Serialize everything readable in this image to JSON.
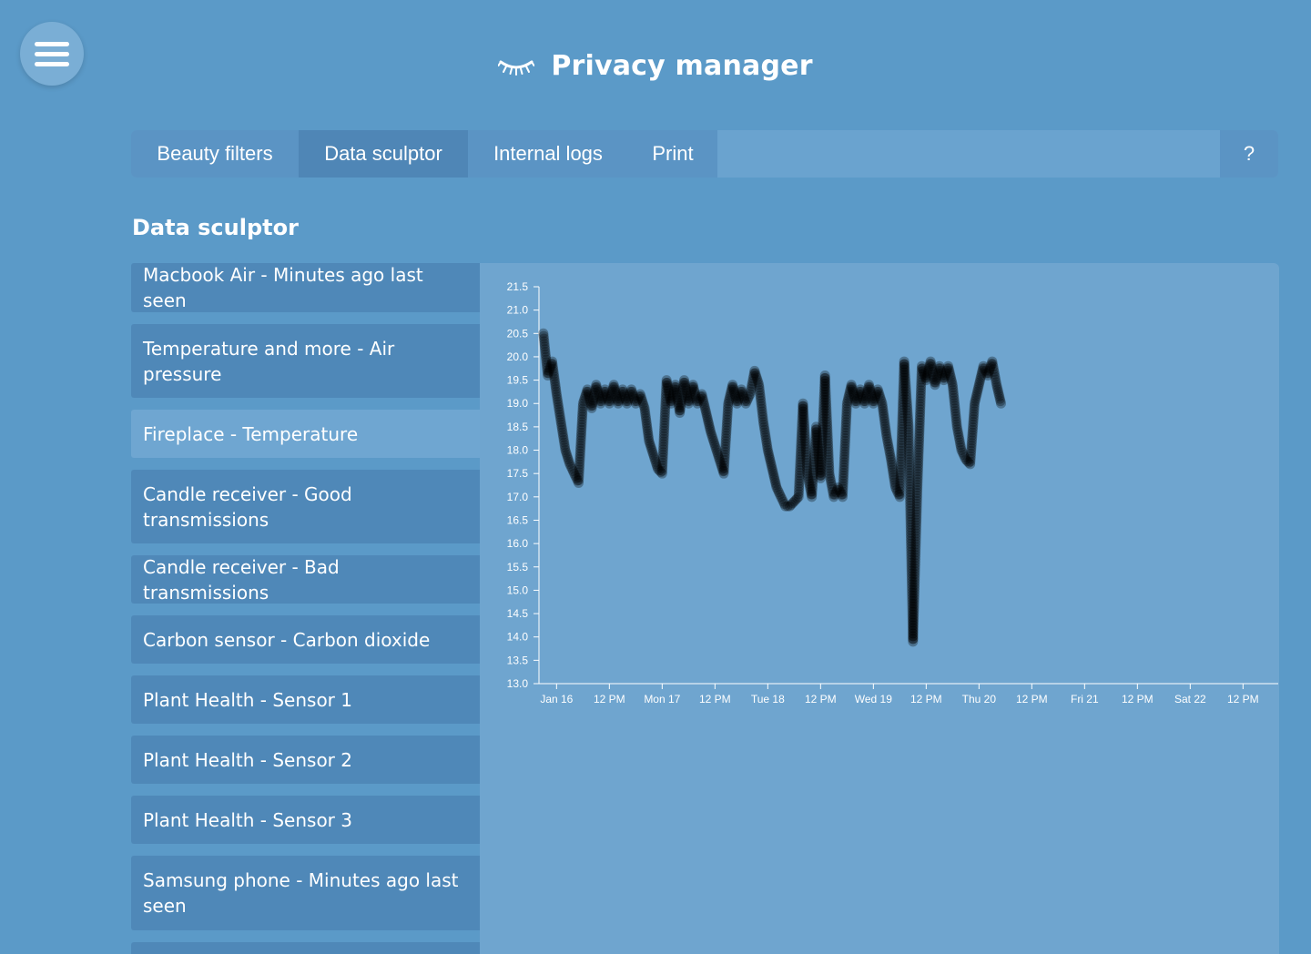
{
  "header": {
    "title": "Privacy manager",
    "icon": "closed-eye-icon"
  },
  "menu": {
    "icon": "hamburger-icon"
  },
  "tabs": [
    {
      "label": "Beauty filters"
    },
    {
      "label": "Data sculptor",
      "active": true
    },
    {
      "label": "Internal logs"
    },
    {
      "label": "Print"
    }
  ],
  "help_label": "?",
  "section_title": "Data sculptor",
  "list": [
    {
      "label": "Macbook Air - Minutes ago last seen"
    },
    {
      "label": "Temperature and more - Air pressure"
    },
    {
      "label": "Fireplace - Temperature",
      "selected": true
    },
    {
      "label": "Candle receiver - Good transmissions"
    },
    {
      "label": "Candle receiver - Bad transmissions"
    },
    {
      "label": "Carbon sensor - Carbon dioxide"
    },
    {
      "label": "Plant Health - Sensor 1"
    },
    {
      "label": "Plant Health - Sensor 2"
    },
    {
      "label": "Plant Health - Sensor 3"
    },
    {
      "label": "Samsung phone - Minutes ago last seen"
    }
  ],
  "chart_data": {
    "type": "scatter",
    "title": "",
    "xlabel": "",
    "ylabel": "",
    "grid": false,
    "point_color": "#000000",
    "ylim": [
      13.0,
      21.5
    ],
    "y_ticks": [
      "21.5",
      "21.0",
      "20.5",
      "20.0",
      "19.5",
      "19.0",
      "18.5",
      "18.0",
      "17.5",
      "17.0",
      "16.5",
      "16.0",
      "15.5",
      "15.0",
      "14.5",
      "14.0",
      "13.5",
      "13.0"
    ],
    "x_ticks": [
      "Jan 16",
      "12 PM",
      "Mon 17",
      "12 PM",
      "Tue 18",
      "12 PM",
      "Wed 19",
      "12 PM",
      "Thu 20",
      "12 PM",
      "Fri 21",
      "12 PM",
      "Sat 22",
      "12 PM"
    ],
    "series": [
      {
        "points": [
          [
            "Jan 15 21:00",
            20.5
          ],
          [
            "Jan 15 22:00",
            19.6
          ],
          [
            "Jan 15 23:00",
            19.9
          ],
          [
            "Jan 16 00:00",
            19.2
          ],
          [
            "Jan 16 01:00",
            18.6
          ],
          [
            "Jan 16 02:00",
            18.0
          ],
          [
            "Jan 16 03:00",
            17.7
          ],
          [
            "Jan 16 04:00",
            17.5
          ],
          [
            "Jan 16 05:00",
            17.3
          ],
          [
            "Jan 16 06:00",
            19.0
          ],
          [
            "Jan 16 07:00",
            19.3
          ],
          [
            "Jan 16 08:00",
            18.9
          ],
          [
            "Jan 16 09:00",
            19.4
          ],
          [
            "Jan 16 10:00",
            19.0
          ],
          [
            "Jan 16 11:00",
            19.3
          ],
          [
            "Jan 16 12:00",
            19.0
          ],
          [
            "Jan 16 13:00",
            19.4
          ],
          [
            "Jan 16 14:00",
            19.0
          ],
          [
            "Jan 16 15:00",
            19.3
          ],
          [
            "Jan 16 16:00",
            19.0
          ],
          [
            "Jan 16 17:00",
            19.3
          ],
          [
            "Jan 16 18:00",
            19.0
          ],
          [
            "Jan 16 19:00",
            19.2
          ],
          [
            "Jan 16 20:00",
            18.9
          ],
          [
            "Jan 16 21:00",
            18.2
          ],
          [
            "Jan 16 22:00",
            17.9
          ],
          [
            "Jan 16 23:00",
            17.6
          ],
          [
            "Jan 17 00:00",
            17.5
          ],
          [
            "Jan 17 01:00",
            19.5
          ],
          [
            "Jan 17 02:00",
            19.0
          ],
          [
            "Jan 17 03:00",
            19.4
          ],
          [
            "Jan 17 04:00",
            18.8
          ],
          [
            "Jan 17 05:00",
            19.5
          ],
          [
            "Jan 17 06:00",
            19.0
          ],
          [
            "Jan 17 07:00",
            19.4
          ],
          [
            "Jan 17 08:00",
            19.0
          ],
          [
            "Jan 17 09:00",
            19.2
          ],
          [
            "Jan 17 10:00",
            18.8
          ],
          [
            "Jan 17 11:00",
            18.4
          ],
          [
            "Jan 17 12:00",
            18.1
          ],
          [
            "Jan 17 13:00",
            17.8
          ],
          [
            "Jan 17 14:00",
            17.5
          ],
          [
            "Jan 17 15:00",
            19.0
          ],
          [
            "Jan 17 16:00",
            19.4
          ],
          [
            "Jan 17 17:00",
            19.0
          ],
          [
            "Jan 17 18:00",
            19.3
          ],
          [
            "Jan 17 19:00",
            19.0
          ],
          [
            "Jan 17 20:00",
            19.2
          ],
          [
            "Jan 17 21:00",
            19.7
          ],
          [
            "Jan 17 22:00",
            19.4
          ],
          [
            "Jan 17 23:00",
            18.6
          ],
          [
            "Jan 18 00:00",
            18.0
          ],
          [
            "Jan 18 01:00",
            17.6
          ],
          [
            "Jan 18 02:00",
            17.2
          ],
          [
            "Jan 18 03:00",
            17.0
          ],
          [
            "Jan 18 04:00",
            16.8
          ],
          [
            "Jan 18 05:00",
            16.8
          ],
          [
            "Jan 18 06:00",
            16.9
          ],
          [
            "Jan 18 07:00",
            17.0
          ],
          [
            "Jan 18 08:00",
            19.0
          ],
          [
            "Jan 18 09:00",
            17.5
          ],
          [
            "Jan 18 10:00",
            17.0
          ],
          [
            "Jan 18 11:00",
            18.5
          ],
          [
            "Jan 18 12:00",
            17.4
          ],
          [
            "Jan 18 13:00",
            19.6
          ],
          [
            "Jan 18 14:00",
            17.5
          ],
          [
            "Jan 18 15:00",
            17.0
          ],
          [
            "Jan 18 16:00",
            17.2
          ],
          [
            "Jan 18 17:00",
            17.0
          ],
          [
            "Jan 18 18:00",
            19.0
          ],
          [
            "Jan 18 19:00",
            19.4
          ],
          [
            "Jan 18 20:00",
            19.0
          ],
          [
            "Jan 18 21:00",
            19.3
          ],
          [
            "Jan 18 22:00",
            19.0
          ],
          [
            "Jan 18 23:00",
            19.4
          ],
          [
            "Jan 19 00:00",
            19.0
          ],
          [
            "Jan 19 01:00",
            19.3
          ],
          [
            "Jan 19 02:00",
            19.0
          ],
          [
            "Jan 19 03:00",
            18.3
          ],
          [
            "Jan 19 04:00",
            17.8
          ],
          [
            "Jan 19 05:00",
            17.2
          ],
          [
            "Jan 19 06:00",
            17.0
          ],
          [
            "Jan 19 07:00",
            19.9
          ],
          [
            "Jan 19 08:00",
            18.5
          ],
          [
            "Jan 19 09:00",
            13.9
          ],
          [
            "Jan 19 10:00",
            17.2
          ],
          [
            "Jan 19 11:00",
            19.8
          ],
          [
            "Jan 19 12:00",
            19.5
          ],
          [
            "Jan 19 13:00",
            19.9
          ],
          [
            "Jan 19 14:00",
            19.4
          ],
          [
            "Jan 19 15:00",
            19.8
          ],
          [
            "Jan 19 16:00",
            19.5
          ],
          [
            "Jan 19 17:00",
            19.8
          ],
          [
            "Jan 19 18:00",
            19.4
          ],
          [
            "Jan 19 19:00",
            18.5
          ],
          [
            "Jan 19 20:00",
            18.0
          ],
          [
            "Jan 19 21:00",
            17.8
          ],
          [
            "Jan 19 22:00",
            17.7
          ],
          [
            "Jan 19 23:00",
            19.0
          ],
          [
            "Jan 20 00:00",
            19.4
          ],
          [
            "Jan 20 01:00",
            19.8
          ],
          [
            "Jan 20 02:00",
            19.6
          ],
          [
            "Jan 20 03:00",
            19.9
          ],
          [
            "Jan 20 04:00",
            19.4
          ],
          [
            "Jan 20 05:00",
            19.0
          ]
        ]
      }
    ]
  }
}
